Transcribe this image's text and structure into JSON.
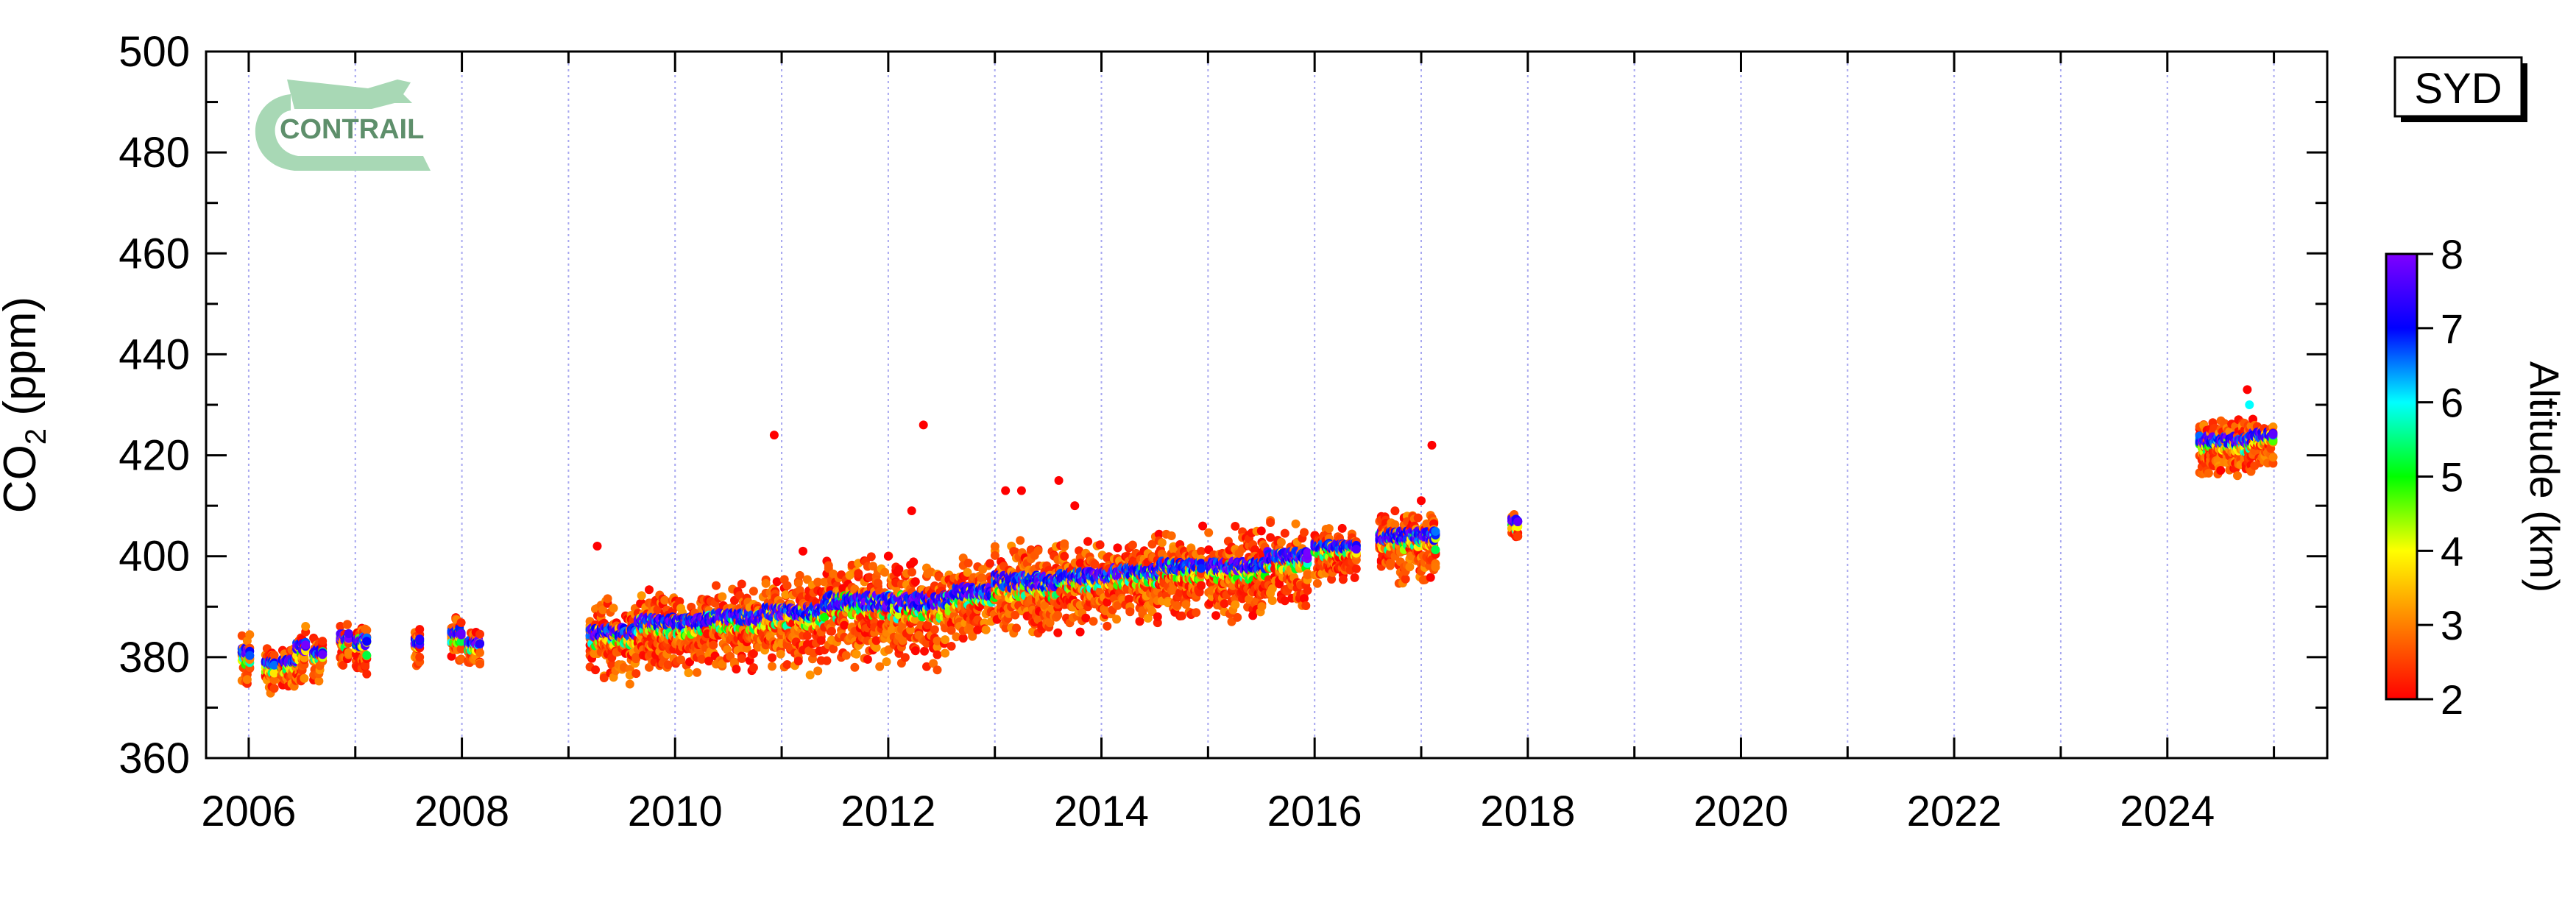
{
  "chart_data": {
    "type": "scatter",
    "title": "",
    "station_label": "SYD",
    "logo_text": "CONTRAIL",
    "ylabel_main": "CO",
    "ylabel_sub": "2",
    "ylabel_unit": " (ppm)",
    "xlabel": "",
    "xlim": [
      2005.6,
      2025.5
    ],
    "ylim": [
      360,
      500
    ],
    "x_ticks": [
      "2006",
      "2008",
      "2010",
      "2012",
      "2014",
      "2016",
      "2018",
      "2020",
      "2022",
      "2024"
    ],
    "y_ticks": [
      "360",
      "380",
      "400",
      "420",
      "440",
      "460",
      "480",
      "500"
    ],
    "grid": "vertical dotted at each year",
    "colorbar": {
      "label": "Altitude (km)",
      "range": [
        2,
        8
      ],
      "ticks": [
        "2",
        "3",
        "4",
        "5",
        "6",
        "7",
        "8"
      ],
      "colors": [
        "#ff0000",
        "#ff7f00",
        "#ffff00",
        "#00ff00",
        "#00ffff",
        "#0000ff",
        "#8000ff"
      ]
    },
    "clusters": [
      {
        "x": [
          2005.93,
          2006.02
        ],
        "center": 380,
        "spread": 2.5,
        "low": 4
      },
      {
        "x": [
          2006.15,
          2006.25
        ],
        "center": 378,
        "spread": 2,
        "low": 3
      },
      {
        "x": [
          2006.3,
          2006.45
        ],
        "center": 378,
        "spread": 2,
        "low": 3
      },
      {
        "x": [
          2006.45,
          2006.55
        ],
        "center": 381,
        "spread": 3,
        "low": 4
      },
      {
        "x": [
          2006.6,
          2006.7
        ],
        "center": 380,
        "spread": 2,
        "low": 3
      },
      {
        "x": [
          2006.85,
          2006.95
        ],
        "center": 383,
        "spread": 2,
        "low": 3
      },
      {
        "x": [
          2007.0,
          2007.12
        ],
        "center": 382,
        "spread": 3,
        "low": 4
      },
      {
        "x": [
          2007.55,
          2007.62
        ],
        "center": 382,
        "spread": 2,
        "low": 3
      },
      {
        "x": [
          2007.9,
          2008.0
        ],
        "center": 384,
        "spread": 2,
        "low": 3
      },
      {
        "x": [
          2008.05,
          2008.18
        ],
        "center": 382,
        "spread": 1.5,
        "low": 2
      },
      {
        "x": [
          2009.2,
          2009.65
        ],
        "center": 384,
        "spread": 3,
        "low": 6
      },
      {
        "x": [
          2009.65,
          2010.3
        ],
        "center": 386,
        "spread": 3,
        "low": 6
      },
      {
        "x": [
          2010.3,
          2010.85
        ],
        "center": 387,
        "spread": 3,
        "low": 6
      },
      {
        "x": [
          2010.85,
          2011.4
        ],
        "center": 388,
        "spread": 3.5,
        "low": 8
      },
      {
        "x": [
          2011.4,
          2012.0
        ],
        "center": 390,
        "spread": 4,
        "low": 8
      },
      {
        "x": [
          2012.0,
          2012.6
        ],
        "center": 390,
        "spread": 4,
        "low": 8
      },
      {
        "x": [
          2012.6,
          2013.0
        ],
        "center": 392,
        "spread": 3,
        "low": 6
      },
      {
        "x": [
          2013.0,
          2013.6
        ],
        "center": 394,
        "spread": 4,
        "low": 7
      },
      {
        "x": [
          2013.6,
          2014.1
        ],
        "center": 395,
        "spread": 3,
        "low": 6
      },
      {
        "x": [
          2014.1,
          2014.55
        ],
        "center": 396,
        "spread": 3,
        "low": 6
      },
      {
        "x": [
          2014.55,
          2014.95
        ],
        "center": 397,
        "spread": 3,
        "low": 6
      },
      {
        "x": [
          2015.0,
          2015.55
        ],
        "center": 397,
        "spread": 3,
        "low": 7
      },
      {
        "x": [
          2015.55,
          2015.95
        ],
        "center": 399,
        "spread": 3,
        "low": 6
      },
      {
        "x": [
          2016.0,
          2016.4
        ],
        "center": 401,
        "spread": 2,
        "low": 4
      },
      {
        "x": [
          2016.6,
          2017.15
        ],
        "center": 403,
        "spread": 3,
        "low": 5
      },
      {
        "x": [
          2017.85,
          2017.92
        ],
        "center": 406,
        "spread": 1.5,
        "low": 1
      },
      {
        "x": [
          2024.3,
          2024.8
        ],
        "center": 422,
        "spread": 2.5,
        "low": 4
      },
      {
        "x": [
          2024.8,
          2025.0
        ],
        "center": 423,
        "spread": 2,
        "low": 3
      }
    ],
    "outliers": [
      {
        "x": 2009.27,
        "y": 402,
        "alt": 2
      },
      {
        "x": 2010.93,
        "y": 424,
        "alt": 2
      },
      {
        "x": 2012.33,
        "y": 426,
        "alt": 2
      },
      {
        "x": 2012.22,
        "y": 409,
        "alt": 2
      },
      {
        "x": 2013.1,
        "y": 413,
        "alt": 2
      },
      {
        "x": 2013.25,
        "y": 413,
        "alt": 2
      },
      {
        "x": 2013.6,
        "y": 415,
        "alt": 2
      },
      {
        "x": 2013.75,
        "y": 410,
        "alt": 2
      },
      {
        "x": 2013.8,
        "y": 385,
        "alt": 2
      },
      {
        "x": 2011.2,
        "y": 401,
        "alt": 2
      },
      {
        "x": 2012.0,
        "y": 400,
        "alt": 2
      },
      {
        "x": 2014.95,
        "y": 406,
        "alt": 2
      },
      {
        "x": 2017.1,
        "y": 422,
        "alt": 2
      },
      {
        "x": 2017.0,
        "y": 411,
        "alt": 2
      },
      {
        "x": 2015.5,
        "y": 405,
        "alt": 2
      },
      {
        "x": 2024.75,
        "y": 433,
        "alt": 2
      },
      {
        "x": 2024.77,
        "y": 430,
        "alt": 6
      },
      {
        "x": 2024.5,
        "y": 417,
        "alt": 2
      }
    ]
  }
}
